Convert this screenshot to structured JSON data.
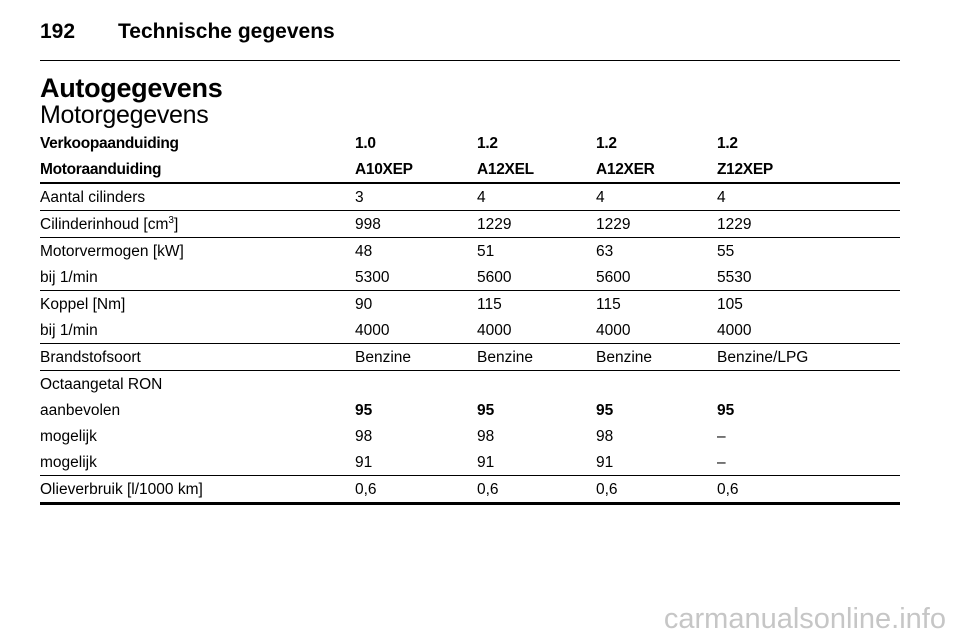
{
  "header": {
    "page_number": "192",
    "section_title": "Technische gegevens"
  },
  "title": "Autogegevens",
  "subtitle": "Motorgegevens",
  "table": {
    "head_rows": [
      {
        "label": "Verkoopaanduiding",
        "values": [
          "1.0",
          "1.2",
          "1.2",
          "1.2"
        ]
      },
      {
        "label": "Motoraanduiding",
        "values": [
          "A10XEP",
          "A12XEL",
          "A12XER",
          "Z12XEP"
        ]
      }
    ],
    "rows": [
      {
        "label": "Aantal cilinders",
        "values": [
          "3",
          "4",
          "4",
          "4"
        ]
      },
      {
        "label_pre": "Cilinderinhoud [cm",
        "label_sup": "3",
        "label_post": "]",
        "values": [
          "998",
          "1229",
          "1229",
          "1229"
        ]
      },
      {
        "label": "Motorvermogen [kW]",
        "values": [
          "48",
          "51",
          "63",
          "55"
        ]
      },
      {
        "label": "bij 1/min",
        "values": [
          "5300",
          "5600",
          "5600",
          "5530"
        ]
      },
      {
        "label": "Koppel [Nm]",
        "values": [
          "90",
          "115",
          "115",
          "105"
        ]
      },
      {
        "label": "bij 1/min",
        "values": [
          "4000",
          "4000",
          "4000",
          "4000"
        ]
      },
      {
        "label": "Brandstofsoort",
        "values": [
          "Benzine",
          "Benzine",
          "Benzine",
          "Benzine/LPG"
        ]
      },
      {
        "label": "Octaangetal RON"
      },
      {
        "label": "aanbevolen",
        "values": [
          "95",
          "95",
          "95",
          "95"
        ]
      },
      {
        "label": "mogelijk",
        "values": [
          "98",
          "98",
          "98",
          "–"
        ]
      },
      {
        "label": "mogelijk",
        "values": [
          "91",
          "91",
          "91",
          "–"
        ]
      },
      {
        "label": "Olieverbruik [l/1000 km]",
        "values": [
          "0,6",
          "0,6",
          "0,6",
          "0,6"
        ]
      }
    ]
  },
  "watermark": "carmanualsonline.info"
}
